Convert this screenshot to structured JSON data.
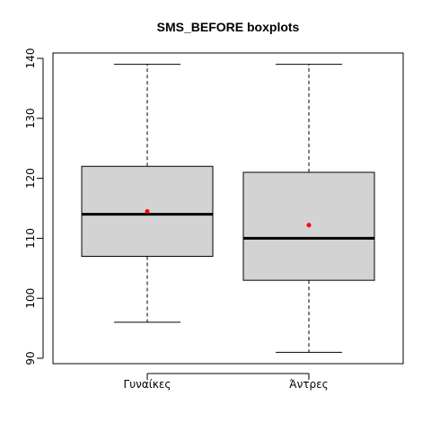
{
  "chart_data": {
    "type": "boxplot",
    "title": "SMS_BEFORE boxplots",
    "xlabel": "",
    "ylabel": "",
    "ylim": [
      90,
      140
    ],
    "yticks": [
      90,
      100,
      110,
      120,
      130,
      140
    ],
    "categories": [
      "Γυναίκες",
      "Άντρες"
    ],
    "boxes": [
      {
        "whisker_low": 96,
        "q1": 107,
        "median": 114,
        "q3": 122,
        "whisker_high": 139,
        "mean": 114.5
      },
      {
        "whisker_low": 91,
        "q1": 103,
        "median": 110,
        "q3": 121,
        "whisker_high": 139,
        "mean": 112.2
      }
    ],
    "colors": {
      "box_fill": "#d3d3d3",
      "mean_point": "#ff0000",
      "line": "#000000"
    },
    "grid": false,
    "legend": "none"
  }
}
